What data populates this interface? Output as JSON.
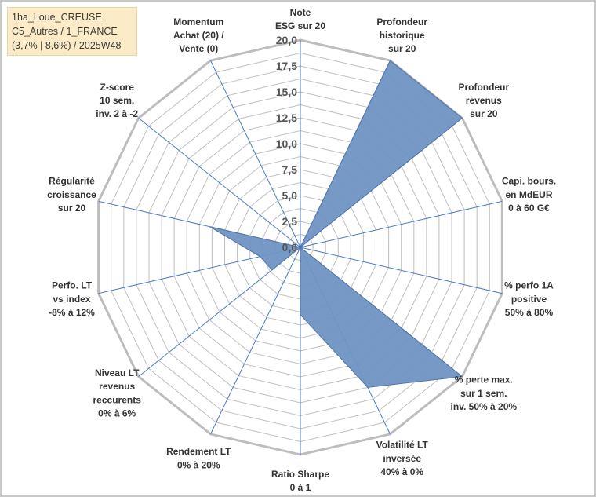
{
  "title_box": {
    "line1": "1ha_Loue_CREUSE",
    "line2": "C5_Autres / 1_FRANCE",
    "line3": "(3,7% | 8,6%) / 2025W48"
  },
  "chart_data": {
    "type": "radar",
    "title": "1ha_Loue_CREUSE C5_Autres / 1_FRANCE (3,7% | 8,6%) / 2025W48",
    "rlim": [
      0,
      20
    ],
    "r_ticks": [
      "0,0",
      "2,5",
      "5,0",
      "7,5",
      "10,0",
      "12,5",
      "15,0",
      "17,5",
      "20,0"
    ],
    "grid": true,
    "categories": [
      [
        "Note",
        "ESG sur 20"
      ],
      [
        "Profondeur",
        "historique",
        "sur 20"
      ],
      [
        "Profondeur",
        "revenus",
        "sur 20"
      ],
      [
        "Capi. bours.",
        "en MdEUR",
        "0 à 60 G€"
      ],
      [
        "% perfo 1A",
        "positive",
        "50% à 80%"
      ],
      [
        "% perte max.",
        "sur 1 sem.",
        "inv. 50% à 20%"
      ],
      [
        "Volatilité LT",
        "inversée",
        "40% à 0%"
      ],
      [
        "Ratio Sharpe",
        "0 à 1"
      ],
      [
        "Rendement LT",
        "0% à 20%"
      ],
      [
        "Niveau LT",
        "revenus",
        "reccurents",
        "0% à 6%"
      ],
      [
        "Perfo. LT",
        "vs index",
        "-8% à 12%"
      ],
      [
        "Régularité",
        "croissance",
        "sur 20"
      ],
      [
        "Z-score",
        "10 sem.",
        "inv. 2 à -2"
      ],
      [
        "Momentum",
        "Achat (20) /",
        "Vente (0)"
      ]
    ],
    "series": [
      {
        "values": [
          0,
          20,
          20,
          0,
          0,
          20,
          15,
          6.5,
          0,
          3.5,
          4.0,
          9.0,
          0,
          0
        ]
      }
    ],
    "colors": {
      "fill": "#7094c3",
      "stroke": "#4f74a8",
      "spoke": "#4a7cc4",
      "ring": "#bfbfbf",
      "outer_ring": "#bdbdbd"
    }
  }
}
